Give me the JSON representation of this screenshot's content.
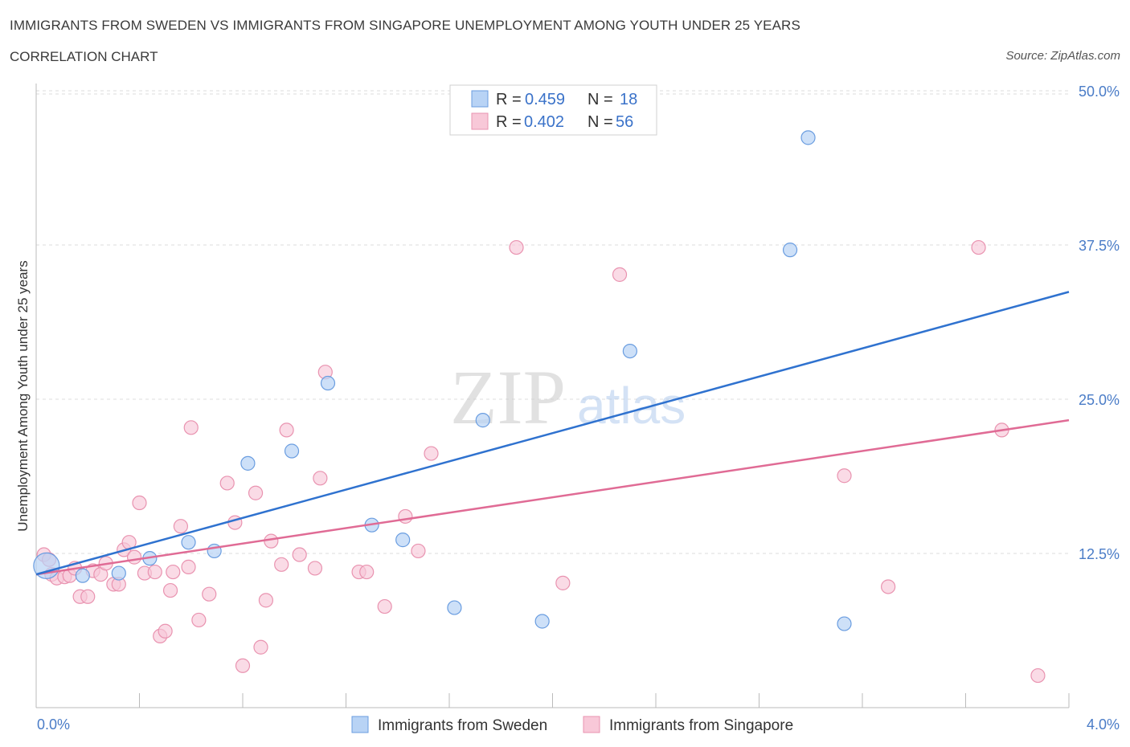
{
  "header": {
    "title": "IMMIGRANTS FROM SWEDEN VS IMMIGRANTS FROM SINGAPORE UNEMPLOYMENT AMONG YOUTH UNDER 25 YEARS",
    "subtitle": "CORRELATION CHART",
    "source": "Source: ZipAtlas.com"
  },
  "watermark": {
    "zip": "ZIP",
    "atlas": "atlas"
  },
  "legend": {
    "sweden": {
      "r_label": "R =",
      "r_value": "0.459",
      "n_label": "N =",
      "n_value": "18"
    },
    "singapore": {
      "r_label": "R =",
      "r_value": "0.402",
      "n_label": "N =",
      "n_value": "56"
    }
  },
  "bottom_legend": {
    "sweden": "Immigrants from Sweden",
    "singapore": "Immigrants from Singapore"
  },
  "colors": {
    "sweden_fill": "#b8d3f5",
    "sweden_stroke": "#6a9de0",
    "sweden_line": "#2f72cf",
    "singapore_fill": "#f8c8d8",
    "singapore_stroke": "#e993b0",
    "singapore_line": "#e06b95",
    "grid": "#dddddd",
    "axis_text": "#4a7cc7"
  },
  "chart_data": {
    "type": "scatter",
    "title": "IMMIGRANTS FROM SWEDEN VS IMMIGRANTS FROM SINGAPORE UNEMPLOYMENT AMONG YOUTH UNDER 25 YEARS",
    "xlabel": "",
    "ylabel": "Unemployment Among Youth under 25 years",
    "xlim": [
      0,
      4.0
    ],
    "ylim": [
      0,
      50
    ],
    "x_tick_labels": [
      "0.0%",
      "4.0%"
    ],
    "y_ticks": [
      12.5,
      25.0,
      37.5,
      50.0
    ],
    "y_tick_labels": [
      "12.5%",
      "25.0%",
      "37.5%",
      "50.0%"
    ],
    "series": [
      {
        "name": "Immigrants from Sweden",
        "r": 0.459,
        "n": 18,
        "trend": {
          "x": [
            0.0,
            4.0
          ],
          "y": [
            10.8,
            33.7
          ]
        },
        "points": [
          {
            "x": 0.04,
            "y": 11.5,
            "size": "large"
          },
          {
            "x": 0.18,
            "y": 10.7
          },
          {
            "x": 0.32,
            "y": 10.9
          },
          {
            "x": 0.44,
            "y": 12.1
          },
          {
            "x": 0.59,
            "y": 13.4
          },
          {
            "x": 0.69,
            "y": 12.7
          },
          {
            "x": 0.82,
            "y": 19.8
          },
          {
            "x": 0.99,
            "y": 20.8
          },
          {
            "x": 1.13,
            "y": 26.3
          },
          {
            "x": 1.3,
            "y": 14.8
          },
          {
            "x": 1.42,
            "y": 13.6
          },
          {
            "x": 1.62,
            "y": 8.1
          },
          {
            "x": 1.73,
            "y": 23.3
          },
          {
            "x": 1.96,
            "y": 7.0
          },
          {
            "x": 2.3,
            "y": 28.9
          },
          {
            "x": 2.92,
            "y": 37.1
          },
          {
            "x": 2.99,
            "y": 46.2
          },
          {
            "x": 3.13,
            "y": 6.8
          }
        ]
      },
      {
        "name": "Immigrants from Singapore",
        "r": 0.402,
        "n": 56,
        "trend": {
          "x": [
            0.0,
            4.0
          ],
          "y": [
            10.8,
            23.3
          ]
        },
        "points": [
          {
            "x": 0.03,
            "y": 12.4
          },
          {
            "x": 0.06,
            "y": 10.8
          },
          {
            "x": 0.08,
            "y": 10.5
          },
          {
            "x": 0.11,
            "y": 10.6
          },
          {
            "x": 0.13,
            "y": 10.7
          },
          {
            "x": 0.15,
            "y": 11.3
          },
          {
            "x": 0.17,
            "y": 9.0
          },
          {
            "x": 0.2,
            "y": 9.0
          },
          {
            "x": 0.22,
            "y": 11.1
          },
          {
            "x": 0.25,
            "y": 10.8
          },
          {
            "x": 0.27,
            "y": 11.7
          },
          {
            "x": 0.3,
            "y": 10.0
          },
          {
            "x": 0.32,
            "y": 10.0
          },
          {
            "x": 0.34,
            "y": 12.8
          },
          {
            "x": 0.36,
            "y": 13.4
          },
          {
            "x": 0.38,
            "y": 12.2
          },
          {
            "x": 0.4,
            "y": 16.6
          },
          {
            "x": 0.42,
            "y": 10.9
          },
          {
            "x": 0.46,
            "y": 11.0
          },
          {
            "x": 0.48,
            "y": 5.8
          },
          {
            "x": 0.5,
            "y": 6.2
          },
          {
            "x": 0.52,
            "y": 9.5
          },
          {
            "x": 0.53,
            "y": 11.0
          },
          {
            "x": 0.56,
            "y": 14.7
          },
          {
            "x": 0.59,
            "y": 11.4
          },
          {
            "x": 0.6,
            "y": 22.7
          },
          {
            "x": 0.63,
            "y": 7.1
          },
          {
            "x": 0.67,
            "y": 9.2
          },
          {
            "x": 0.74,
            "y": 18.2
          },
          {
            "x": 0.77,
            "y": 15.0
          },
          {
            "x": 0.8,
            "y": 3.4
          },
          {
            "x": 0.85,
            "y": 17.4
          },
          {
            "x": 0.87,
            "y": 4.9
          },
          {
            "x": 0.89,
            "y": 8.7
          },
          {
            "x": 0.91,
            "y": 13.5
          },
          {
            "x": 0.95,
            "y": 11.6
          },
          {
            "x": 0.97,
            "y": 22.5
          },
          {
            "x": 1.02,
            "y": 12.4
          },
          {
            "x": 1.08,
            "y": 11.3
          },
          {
            "x": 1.1,
            "y": 18.6
          },
          {
            "x": 1.12,
            "y": 27.2
          },
          {
            "x": 1.25,
            "y": 11.0
          },
          {
            "x": 1.28,
            "y": 11.0
          },
          {
            "x": 1.35,
            "y": 8.2
          },
          {
            "x": 1.43,
            "y": 15.5
          },
          {
            "x": 1.48,
            "y": 12.7
          },
          {
            "x": 1.53,
            "y": 20.6
          },
          {
            "x": 1.86,
            "y": 37.3
          },
          {
            "x": 2.04,
            "y": 10.1
          },
          {
            "x": 2.26,
            "y": 35.1
          },
          {
            "x": 3.13,
            "y": 18.8
          },
          {
            "x": 3.3,
            "y": 9.8
          },
          {
            "x": 3.65,
            "y": 37.3
          },
          {
            "x": 3.74,
            "y": 22.5
          },
          {
            "x": 3.88,
            "y": 2.6
          },
          {
            "x": 0.05,
            "y": 12.0
          }
        ]
      }
    ]
  }
}
